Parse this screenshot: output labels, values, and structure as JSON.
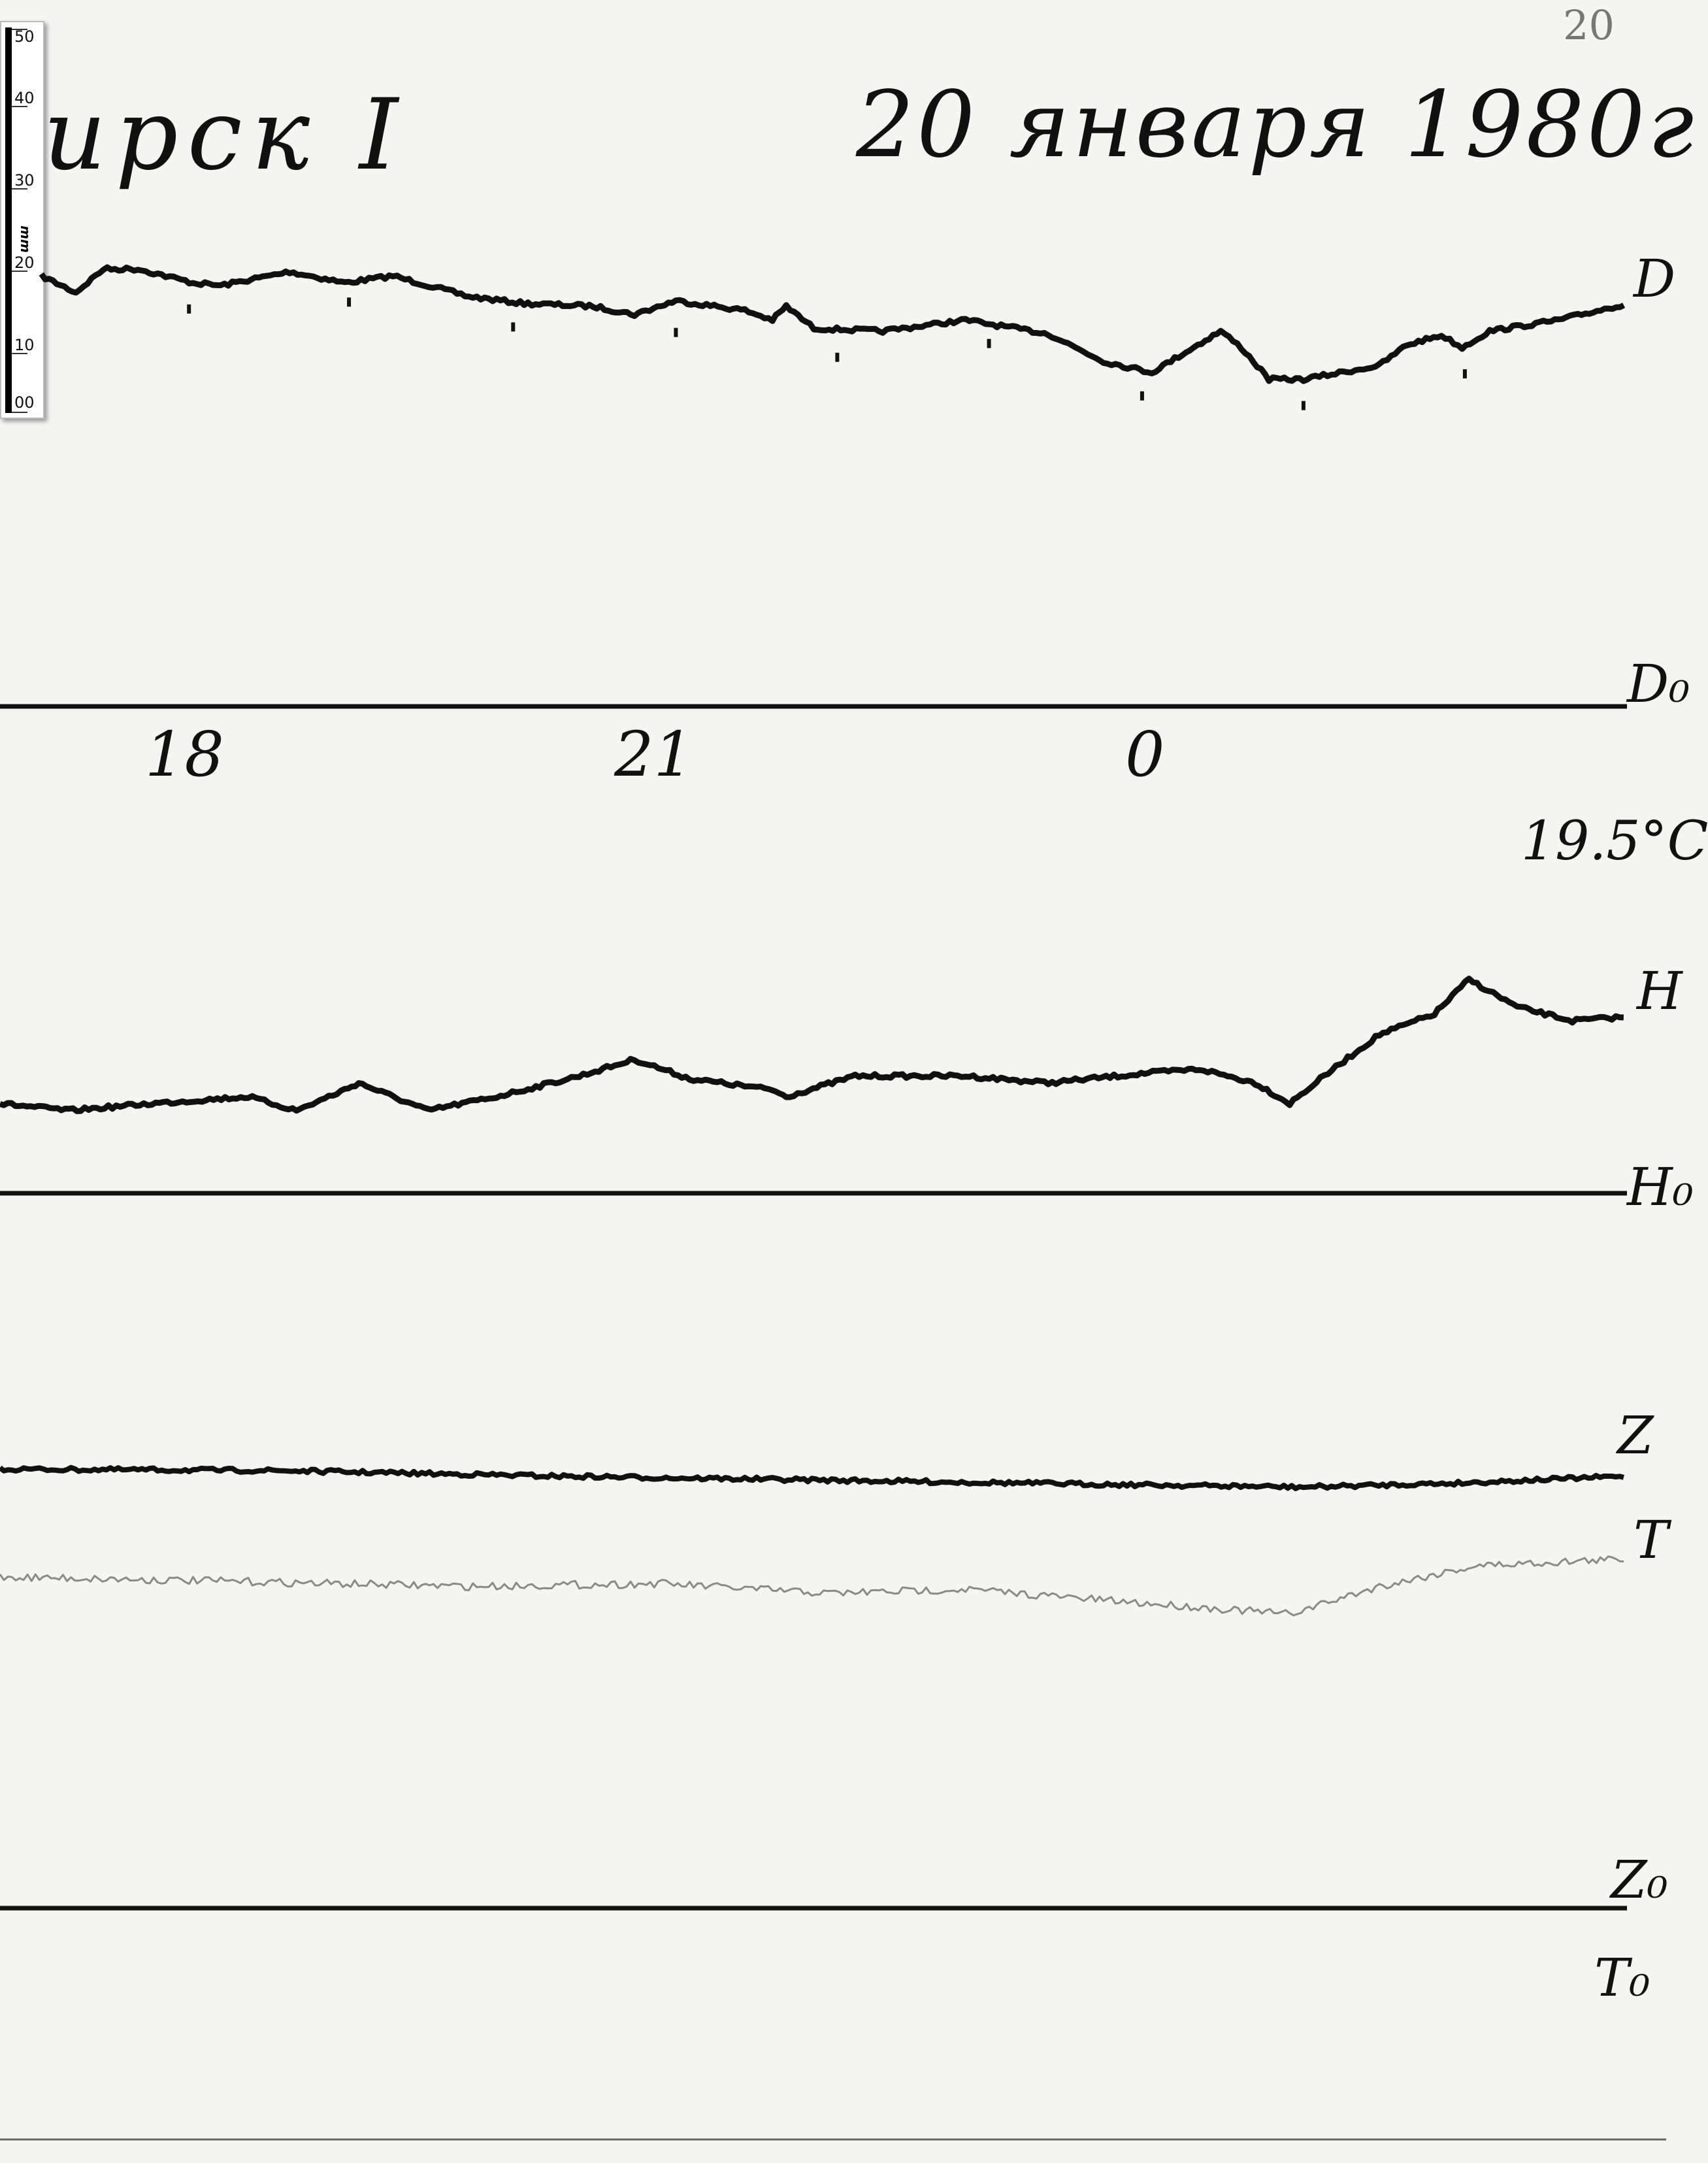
{
  "header": {
    "station": "ирск I",
    "date": "20 января 1980г",
    "page_number": "20"
  },
  "scale_ruler": {
    "unit": "mm",
    "labels": [
      "50",
      "40",
      "30",
      "20",
      "10",
      "00"
    ]
  },
  "hour_labels": [
    "18",
    "21",
    "0"
  ],
  "temperature": "19.5°C",
  "channels": {
    "D": "D",
    "D0": "D₀",
    "H": "H",
    "H0": "H₀",
    "Z": "Z",
    "T": "T",
    "Z0": "Z₀",
    "T0": "T₀"
  },
  "colors": {
    "paper": "#f4f4f3",
    "trace": "#111111",
    "temperature_trace": "#8a8a8a"
  }
}
